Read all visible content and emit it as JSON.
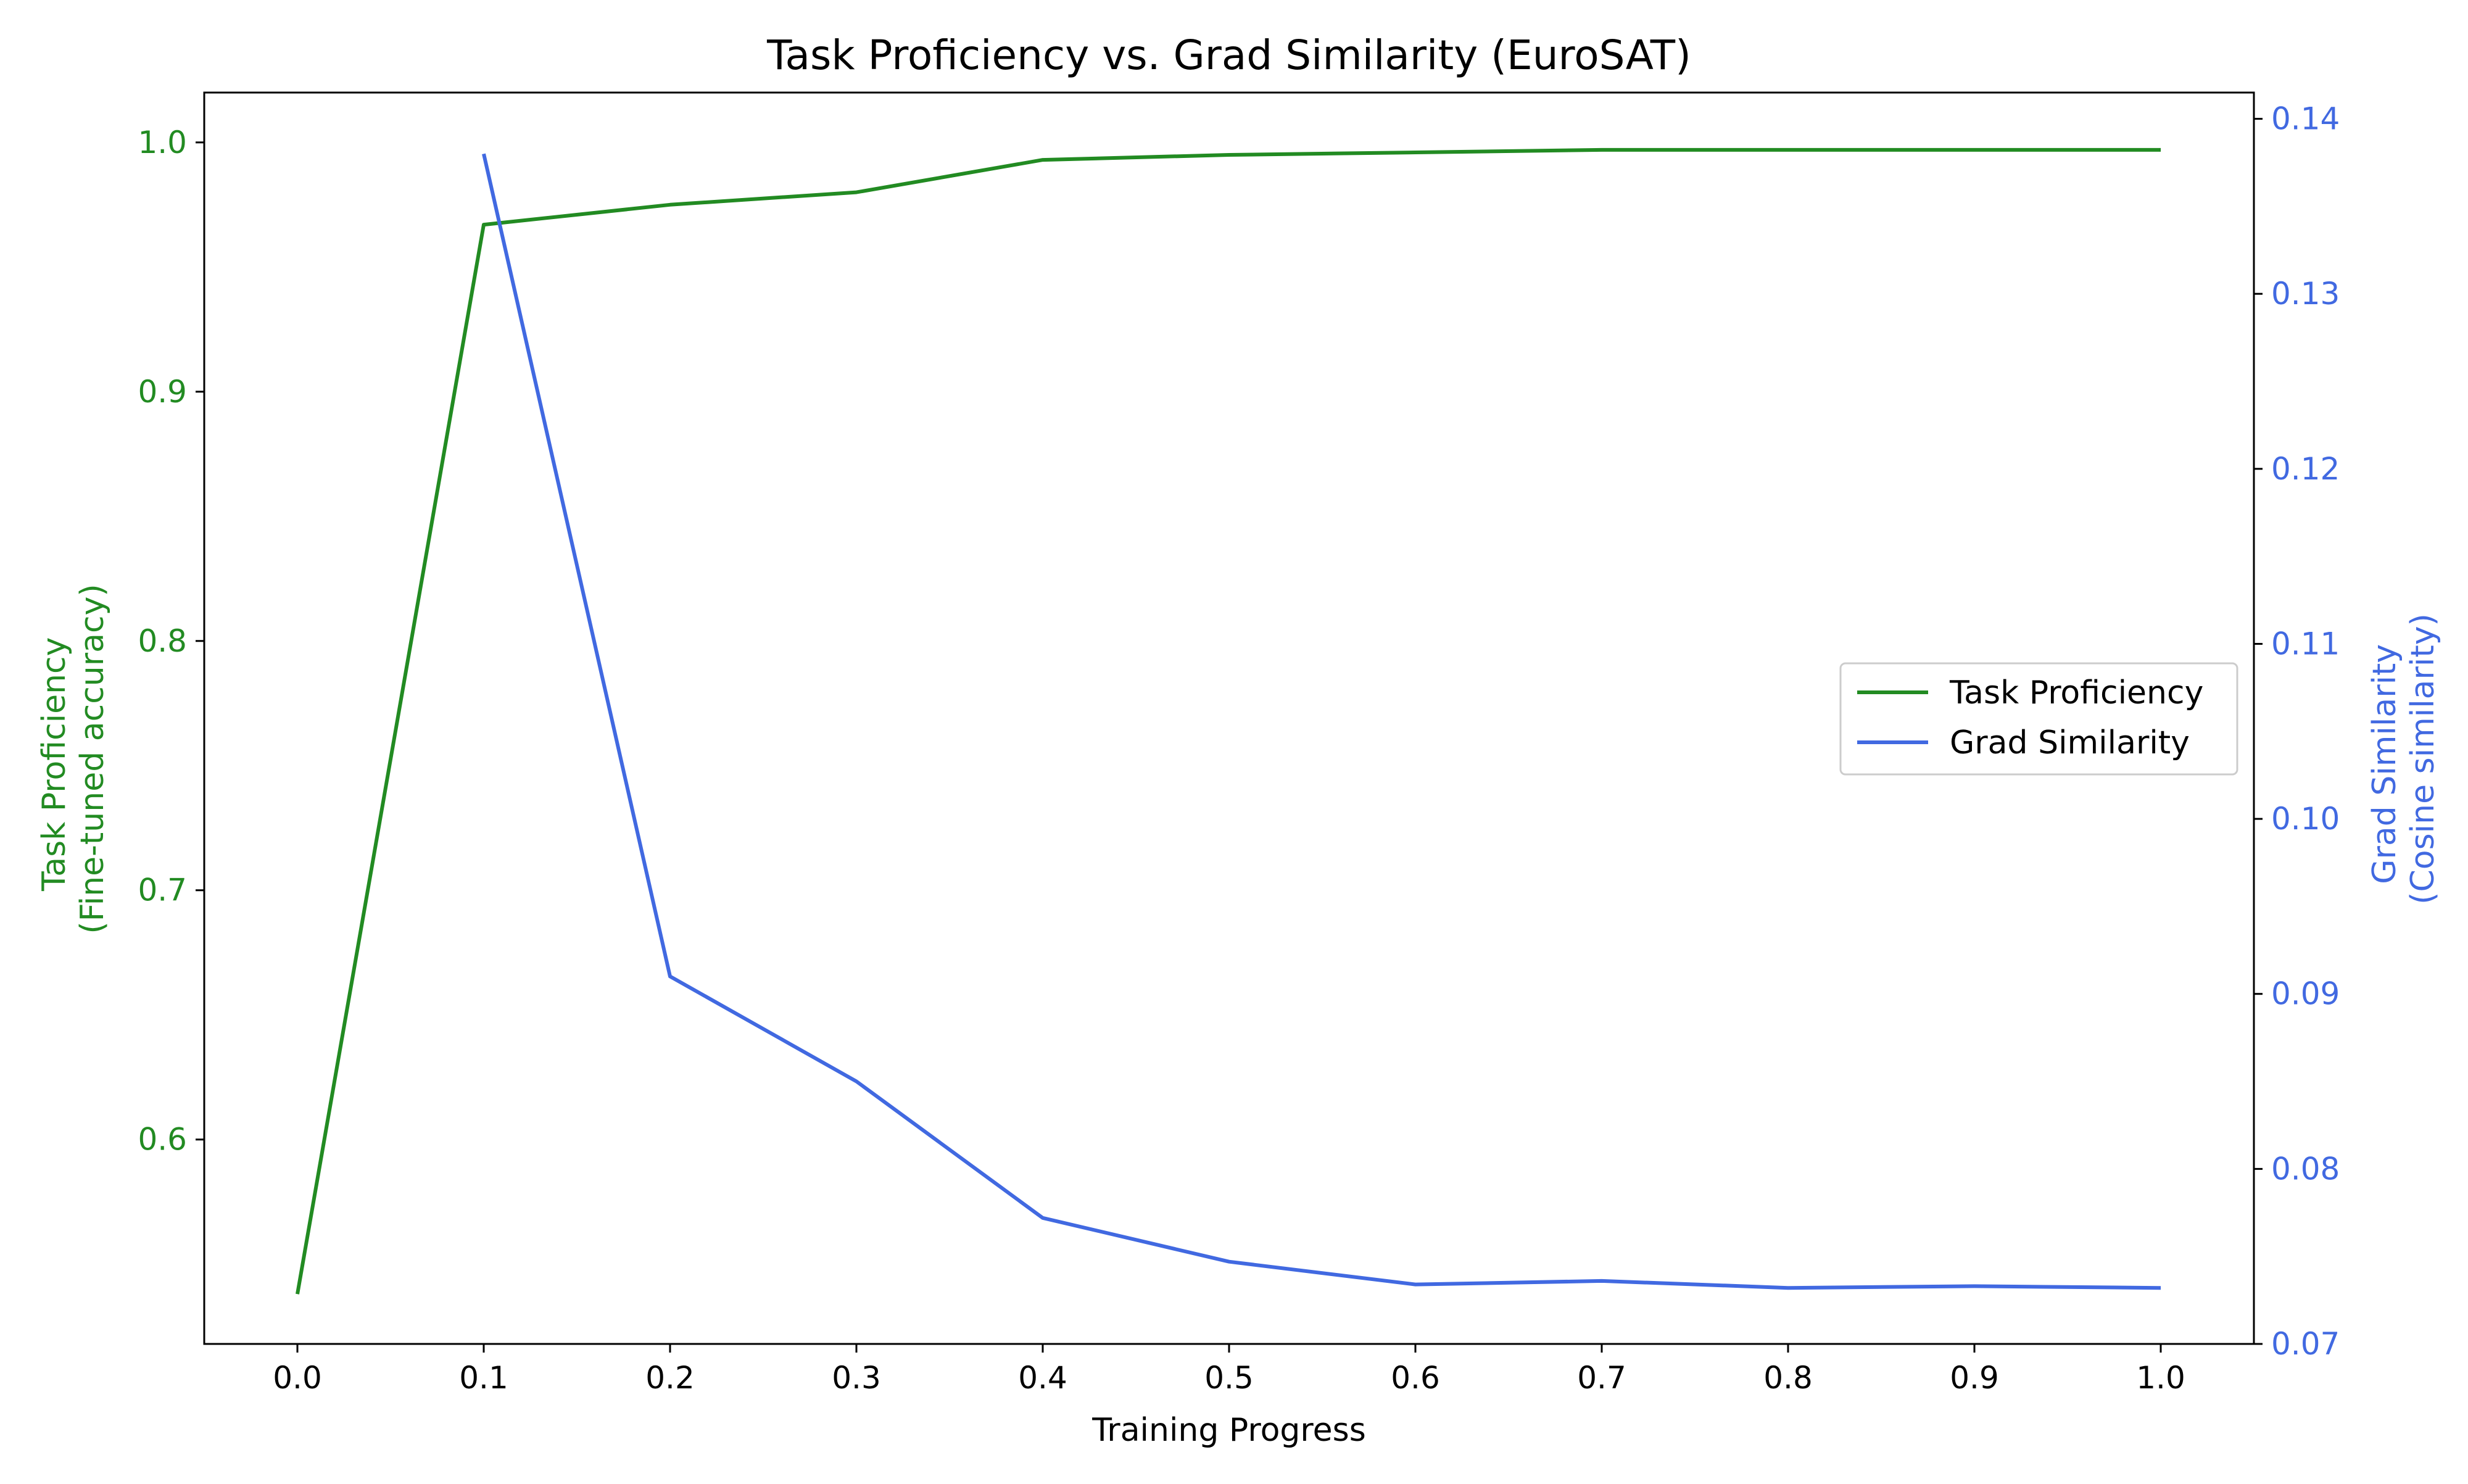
{
  "chart_data": {
    "type": "line",
    "title": "Task Proficiency vs. Grad Similarity (EuroSAT)",
    "xlabel": "Training Progress",
    "ylabel_left": [
      "Task Proficiency",
      "(Fine-tuned accuracy)"
    ],
    "ylabel_right": [
      "Grad Similarity",
      "(Cosine similarity)"
    ],
    "xlim": [
      -0.05,
      1.05
    ],
    "ylim_left": [
      0.518,
      1.02
    ],
    "ylim_right": [
      0.07,
      0.1415
    ],
    "x_ticks": [
      "0.0",
      "0.1",
      "0.2",
      "0.3",
      "0.4",
      "0.5",
      "0.6",
      "0.7",
      "0.8",
      "0.9",
      "1.0"
    ],
    "y_ticks_left": [
      "0.6",
      "0.7",
      "0.8",
      "0.9",
      "1.0"
    ],
    "y_ticks_right": [
      "0.07",
      "0.08",
      "0.09",
      "0.10",
      "0.11",
      "0.12",
      "0.13",
      "0.14"
    ],
    "grid": false,
    "legend_position": "center-right",
    "colors": {
      "task_proficiency": "#228B22",
      "grad_similarity": "#4169E1"
    },
    "series": [
      {
        "name": "Task Proficiency",
        "axis": "left",
        "x": [
          0.0,
          0.1,
          0.2,
          0.3,
          0.4,
          0.5,
          0.6,
          0.7,
          0.8,
          0.9,
          1.0
        ],
        "values": [
          0.538,
          0.967,
          0.975,
          0.98,
          0.993,
          0.995,
          0.996,
          0.997,
          0.997,
          0.997,
          0.997
        ]
      },
      {
        "name": "Grad Similarity",
        "axis": "right",
        "x": [
          0.1,
          0.2,
          0.3,
          0.4,
          0.5,
          0.6,
          0.7,
          0.8,
          0.9,
          1.0
        ],
        "values": [
          0.138,
          0.091,
          0.085,
          0.0772,
          0.0747,
          0.0734,
          0.0736,
          0.0732,
          0.0733,
          0.0732
        ]
      }
    ]
  }
}
